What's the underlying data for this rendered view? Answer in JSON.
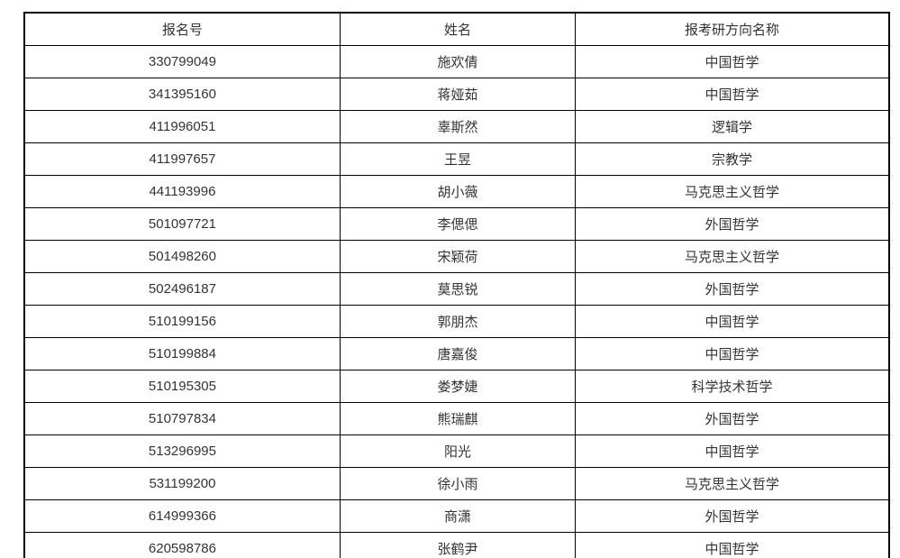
{
  "table": {
    "headers": [
      "报名号",
      "姓名",
      "报考研方向名称"
    ],
    "rows": [
      [
        "330799049",
        "施欢倩",
        "中国哲学"
      ],
      [
        "341395160",
        "蒋娅茹",
        "中国哲学"
      ],
      [
        "411996051",
        "辜斯然",
        "逻辑学"
      ],
      [
        "411997657",
        "王昱",
        "宗教学"
      ],
      [
        "441193996",
        "胡小薇",
        "马克思主义哲学"
      ],
      [
        "501097721",
        "李偲偲",
        "外国哲学"
      ],
      [
        "501498260",
        "宋颖荷",
        "马克思主义哲学"
      ],
      [
        "502496187",
        "莫思锐",
        "外国哲学"
      ],
      [
        "510199156",
        "郭朋杰",
        "中国哲学"
      ],
      [
        "510199884",
        "唐嘉俊",
        "中国哲学"
      ],
      [
        "510195305",
        "娄梦婕",
        "科学技术哲学"
      ],
      [
        "510797834",
        "熊瑞麒",
        "外国哲学"
      ],
      [
        "513296995",
        "阳光",
        "中国哲学"
      ],
      [
        "531199200",
        "徐小雨",
        "马克思主义哲学"
      ],
      [
        "614999366",
        "商潇",
        "外国哲学"
      ],
      [
        "620598786",
        "张鹤尹",
        "中国哲学"
      ]
    ],
    "colors": {
      "border": "#000000",
      "text": "#333333",
      "background": "#ffffff"
    }
  }
}
